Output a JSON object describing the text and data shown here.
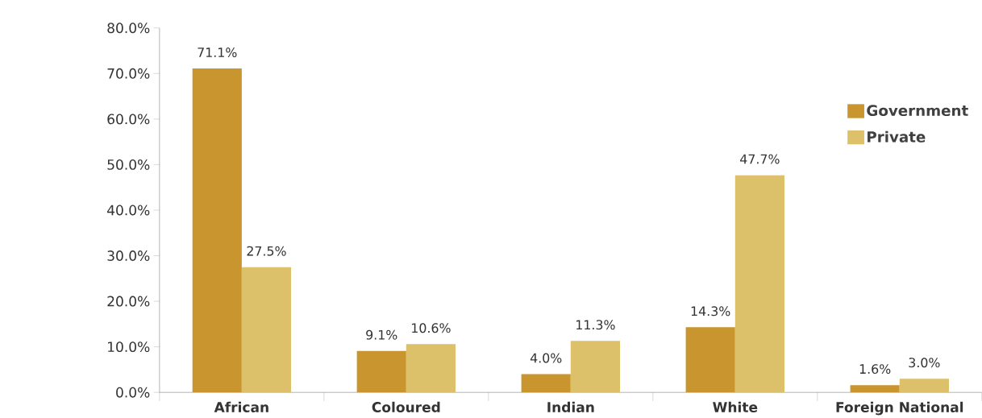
{
  "chart_data": {
    "type": "bar",
    "categories": [
      "African",
      "Coloured",
      "Indian",
      "White",
      "Foreign National"
    ],
    "series": [
      {
        "name": "Government",
        "color": "#c8952e",
        "values": [
          71.1,
          9.1,
          4.0,
          14.3,
          1.6
        ],
        "value_labels": [
          "71.1%",
          "9.1%",
          "4.0%",
          "14.3%",
          "1.6%"
        ]
      },
      {
        "name": "Private",
        "color": "#dcc16a",
        "values": [
          27.5,
          10.6,
          11.3,
          47.7,
          3.0
        ],
        "value_labels": [
          "27.5%",
          "10.6%",
          "11.3%",
          "47.7%",
          "3.0%"
        ]
      }
    ],
    "ylim": [
      0,
      80
    ],
    "yticks": [
      {
        "value": 0,
        "label": "0.0%"
      },
      {
        "value": 10,
        "label": "10.0%"
      },
      {
        "value": 20,
        "label": "20.0%"
      },
      {
        "value": 30,
        "label": "30.0%"
      },
      {
        "value": 40,
        "label": "40.0%"
      },
      {
        "value": 50,
        "label": "50.0%"
      },
      {
        "value": 60,
        "label": "60.0%"
      },
      {
        "value": 70,
        "label": "70.0%"
      },
      {
        "value": 80,
        "label": "80.0%"
      }
    ],
    "grid": false,
    "legend": "right"
  }
}
